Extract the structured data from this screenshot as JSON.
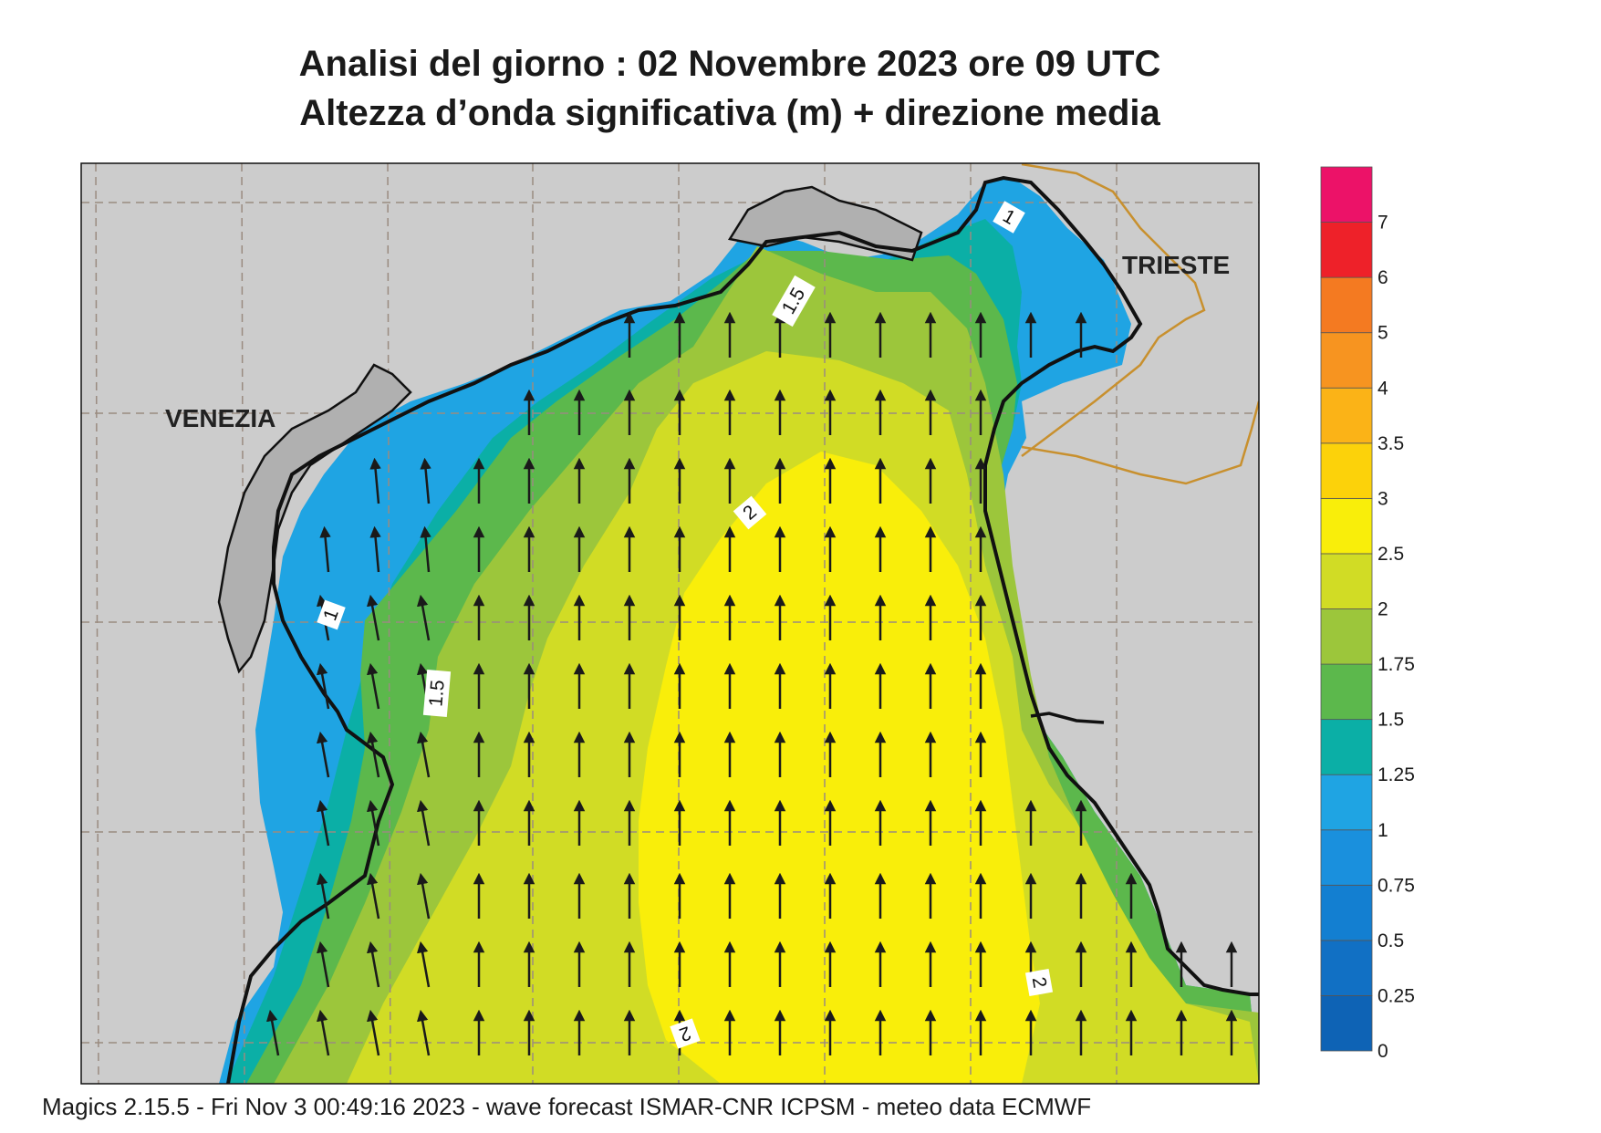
{
  "title": {
    "line1": "Analisi del giorno :  02 Novembre  2023   ore 09 UTC",
    "line2": "Altezza d’onda significativa (m) + direzione media"
  },
  "labels": {
    "venezia": "VENEZIA",
    "trieste": "TRIESTE"
  },
  "contour_labels": [
    "1",
    "1.5",
    "2",
    "1",
    "1.5",
    "2",
    "2"
  ],
  "colorbar": {
    "ticks": [
      "0",
      "0.25",
      "0.5",
      "0.75",
      "1",
      "1.25",
      "1.5",
      "1.75",
      "2",
      "2.5",
      "3",
      "3.5",
      "4",
      "5",
      "6",
      "7"
    ],
    "colors": [
      "#0e63b5",
      "#1170c4",
      "#137fd1",
      "#1a90dd",
      "#1fa4e3",
      "#0bafa6",
      "#5cb84c",
      "#9cc63b",
      "#d1dc25",
      "#f9ee0a",
      "#fcd20a",
      "#fbb317",
      "#f79420",
      "#f47a21",
      "#ee2129",
      "#ec1268"
    ]
  },
  "colors": {
    "land": "#cccccc",
    "dark_land": "#b0b0b0",
    "coast": "#111111",
    "grid": "#9a8b80",
    "border": "#c8902e"
  },
  "footer": "Magics 2.15.5 - Fri Nov  3 00:49:16 2023 - wave forecast  ISMAR-CNR  ICPSM - meteo data   ECMWF"
}
